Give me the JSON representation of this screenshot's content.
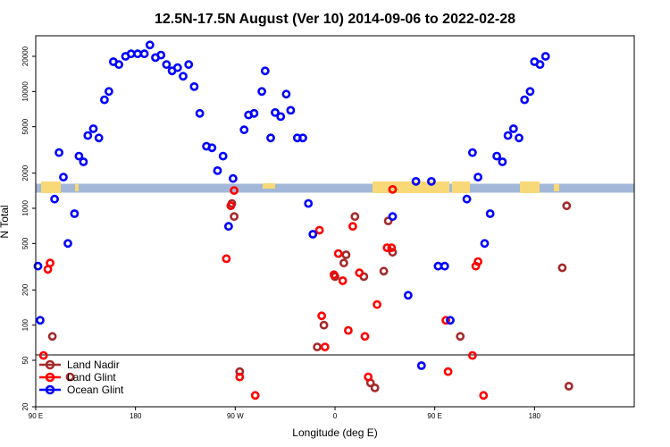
{
  "chart_data": {
    "type": "scatter",
    "title": "12.5N-17.5N August (Ver 10)   2014-09-06 to 2022-02-28",
    "xlabel": "Longitude (deg E)",
    "ylabel": "N Total",
    "x_scale": "linear",
    "y_scale": "log",
    "xlim": [
      -90,
      180
    ],
    "ylim": [
      20,
      30000
    ],
    "x_ticks": [
      {
        "value": -90,
        "label": "90 E"
      },
      {
        "value": -45,
        "label": "180"
      },
      {
        "value": 0,
        "label": "90 W"
      },
      {
        "value": 45,
        "label": "0"
      },
      {
        "value": 90,
        "label": "90 E"
      },
      {
        "value": 135,
        "label": "180"
      }
    ],
    "y_ticks": [
      {
        "value": 20,
        "label": "20"
      },
      {
        "value": 50,
        "label": "50"
      },
      {
        "value": 100,
        "label": "100"
      },
      {
        "value": 200,
        "label": "200"
      },
      {
        "value": 500,
        "label": "500"
      },
      {
        "value": 1000,
        "label": "1000"
      },
      {
        "value": 2000,
        "label": "2000"
      },
      {
        "value": 5000,
        "label": "5000"
      },
      {
        "value": 10000,
        "label": "10000"
      },
      {
        "value": 20000,
        "label": "20000"
      }
    ],
    "legend_position": "bottom-left",
    "grid": false,
    "series": [
      {
        "name": "Land Nadir",
        "color": "#a52a2a",
        "points": [
          [
            -82.5,
            80
          ],
          [
            -74.5,
            36
          ],
          [
            -1.5,
            1100
          ],
          [
            -0.5,
            850
          ],
          [
            2,
            40
          ],
          [
            37,
            65
          ],
          [
            40,
            100
          ],
          [
            45,
            260
          ],
          [
            49,
            340
          ],
          [
            50,
            400
          ],
          [
            54,
            850
          ],
          [
            58,
            260
          ],
          [
            61,
            32
          ],
          [
            63,
            29
          ],
          [
            67,
            290
          ],
          [
            69,
            780
          ],
          [
            71,
            420
          ],
          [
            101.5,
            80
          ],
          [
            150.5,
            30
          ],
          [
            149.5,
            1050
          ],
          [
            147.5,
            310
          ]
        ]
      },
      {
        "name": "Land Glint",
        "color": "#ff0000",
        "points": [
          [
            -84.5,
            300
          ],
          [
            -83.5,
            340
          ],
          [
            -86.5,
            55
          ],
          [
            -4,
            370
          ],
          [
            -2,
            1050
          ],
          [
            -0.5,
            1420
          ],
          [
            2,
            36
          ],
          [
            9,
            25
          ],
          [
            38,
            650
          ],
          [
            39,
            120
          ],
          [
            40.5,
            65
          ],
          [
            44.5,
            270
          ],
          [
            46.5,
            410
          ],
          [
            48.5,
            240
          ],
          [
            51,
            90
          ],
          [
            53,
            700
          ],
          [
            56,
            280
          ],
          [
            58.5,
            80
          ],
          [
            60,
            36
          ],
          [
            64,
            150
          ],
          [
            68.5,
            460
          ],
          [
            70.5,
            460
          ],
          [
            71,
            1450
          ],
          [
            95,
            110
          ],
          [
            96,
            40
          ],
          [
            107,
            55
          ],
          [
            108.5,
            320
          ],
          [
            109.5,
            350
          ],
          [
            112,
            25
          ]
        ]
      },
      {
        "name": "Ocean Glint",
        "color": "#0000ff",
        "points": [
          [
            -89,
            320
          ],
          [
            -88,
            110
          ],
          [
            -81.5,
            1200
          ],
          [
            -79.5,
            3000
          ],
          [
            -77.5,
            1850
          ],
          [
            -75.5,
            500
          ],
          [
            -72.5,
            900
          ],
          [
            -70.5,
            2800
          ],
          [
            -68.5,
            2500
          ],
          [
            -66.5,
            4200
          ],
          [
            -64,
            4800
          ],
          [
            -61.5,
            4000
          ],
          [
            -59,
            8500
          ],
          [
            -57,
            10000
          ],
          [
            -55,
            18000
          ],
          [
            -52.5,
            17000
          ],
          [
            -49.5,
            20000
          ],
          [
            -47,
            21000
          ],
          [
            -44,
            21000
          ],
          [
            -41,
            21000
          ],
          [
            -38.5,
            25000
          ],
          [
            -36,
            19500
          ],
          [
            -33.5,
            20500
          ],
          [
            -31,
            17000
          ],
          [
            -28.5,
            15000
          ],
          [
            -26,
            16000
          ],
          [
            -23.5,
            13500
          ],
          [
            -21,
            17000
          ],
          [
            -18.5,
            11000
          ],
          [
            -16,
            6500
          ],
          [
            -13,
            3400
          ],
          [
            -10.5,
            3300
          ],
          [
            -8,
            2100
          ],
          [
            -5.5,
            2800
          ],
          [
            -3,
            700
          ],
          [
            -1,
            1800
          ],
          [
            4,
            4700
          ],
          [
            6,
            6300
          ],
          [
            8.5,
            6500
          ],
          [
            12,
            10000
          ],
          [
            13.5,
            15000
          ],
          [
            16,
            4000
          ],
          [
            18,
            6600
          ],
          [
            20.5,
            6100
          ],
          [
            23,
            9500
          ],
          [
            25,
            6900
          ],
          [
            28,
            4000
          ],
          [
            30.5,
            4000
          ],
          [
            33,
            1100
          ],
          [
            35,
            600
          ],
          [
            71,
            850
          ],
          [
            78,
            180
          ],
          [
            81.5,
            1700
          ],
          [
            84,
            45
          ],
          [
            88.5,
            1700
          ],
          [
            91.5,
            320
          ],
          [
            94.5,
            320
          ],
          [
            97,
            110
          ],
          [
            104.5,
            1200
          ],
          [
            107,
            3000
          ],
          [
            109.5,
            1850
          ],
          [
            112.5,
            500
          ],
          [
            115,
            900
          ],
          [
            118,
            2800
          ],
          [
            120.5,
            2500
          ],
          [
            123,
            4200
          ],
          [
            125.5,
            4800
          ],
          [
            128,
            4000
          ],
          [
            130.5,
            8500
          ],
          [
            133,
            10000
          ],
          [
            135,
            18000
          ],
          [
            137.5,
            17000
          ],
          [
            140,
            20000
          ]
        ]
      }
    ],
    "legend_labels": [
      "Land Nadir",
      "Land Glint",
      "Ocean Glint"
    ]
  }
}
